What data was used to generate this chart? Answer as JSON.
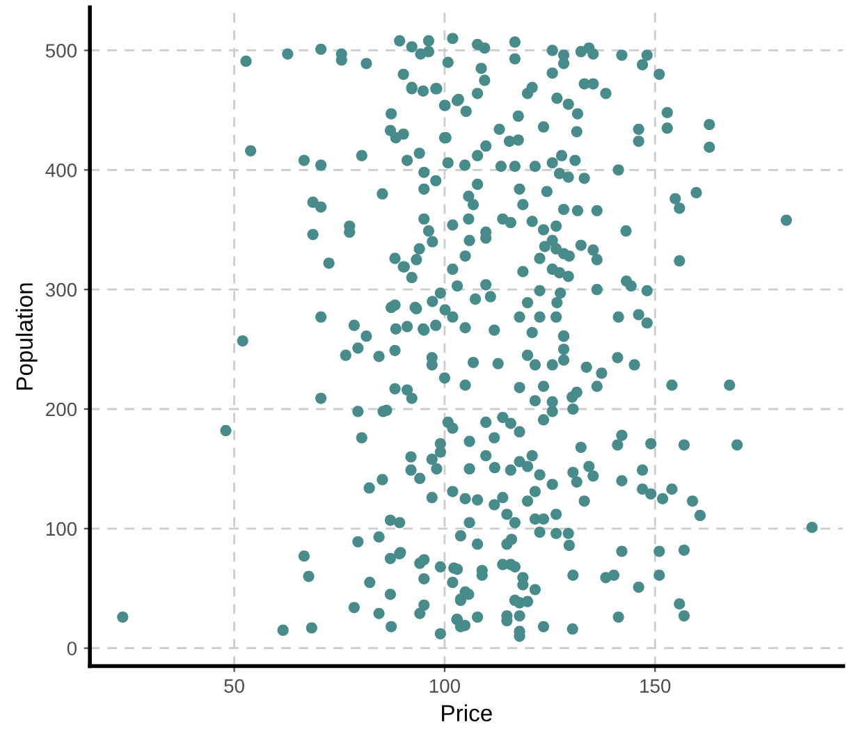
{
  "chart_data": {
    "type": "scatter",
    "xlabel": "Price",
    "ylabel": "Population",
    "xlim": [
      15.7,
      194.7
    ],
    "ylim": [
      -15,
      536
    ],
    "xticks": [
      50,
      100,
      150
    ],
    "yticks": [
      0,
      100,
      200,
      300,
      400,
      500
    ],
    "grid": true,
    "marker": "circle",
    "series": [
      {
        "color": "#478b8a",
        "x": [
          101.9,
          107.8,
          109.5,
          116.7,
          116.7,
          125.6,
          128.3,
          128.3,
          132.4,
          134.3,
          135.3,
          142.1,
          148.1,
          147,
          151,
          125.6,
          133.2,
          135.3,
          138.3,
          119.7,
          120.8,
          108.7,
          109.5,
          107.8,
          103,
          105.1,
          100,
          98.1,
          92.2,
          94.9,
          117.5,
          126.7,
          129.4,
          131.6,
          123.5,
          131.4,
          146.1,
          146.1,
          152.9,
          152.9,
          162.9,
          162.9,
          100,
          109.8,
          113,
          115.4,
          117.5,
          107.8,
          104.8,
          100.8,
          91.1,
          94,
          95.1,
          97.9,
          113.4,
          116.7,
          121.5,
          125.6,
          127.8,
          131,
          127.3,
          129.4,
          133.2,
          141.3,
          95.1,
          107.8,
          117.8,
          124.3,
          105.7,
          106.8,
          154.8,
          155.8,
          159.8,
          181.2,
          118.6,
          128.3,
          131.6,
          136.2,
          95.1,
          96.2,
          101.9,
          105.7,
          113.8,
          115.7,
          120.8,
          123.5,
          126.5,
          109.8,
          109.8,
          105.9,
          97.1,
          94,
          93.3,
          90.4,
          92.2,
          104.9,
          101.9,
          118.6,
          122.6,
          123.8,
          125.6,
          126.5,
          128.3,
          129.6,
          132.4,
          135.3,
          136.2,
          143.1,
          155.8,
          125.6,
          127.3,
          129.4,
          143.2,
          144.3,
          148.1,
          136.2,
          127.5,
          122.6,
          109.8,
          110.9,
          107.3,
          103,
          99,
          97.1,
          93.3,
          100.1,
          101.9,
          104.9,
          111.8,
          117.8,
          119.7,
          122.6,
          126.5,
          126.7,
          120.8,
          128.3,
          141.3,
          146.1,
          148.1,
          94.9,
          91.1,
          52.8,
          62.7,
          70.6,
          75.5,
          75.5,
          81.4,
          89.3,
          92.2,
          94.3,
          96.2,
          96.2,
          90.2,
          92.2,
          97.9,
          100.8,
          100.1,
          103.3,
          87.3,
          87.1,
          88.4,
          90.2,
          100.3,
          53.9,
          66.6,
          70.6,
          80.3,
          85.2,
          68.7,
          70.6,
          77.4,
          77.4,
          68.7,
          72.5,
          88.2,
          90.2,
          87.3,
          88.2,
          93.0,
          70.6,
          78.5,
          81.4,
          88.4,
          95.1,
          97.9,
          52,
          76.5,
          79.4,
          84.4,
          88.2,
          97,
          97,
          100,
          70.6,
          79.4,
          85.4,
          86.2,
          88.2,
          91.1,
          92.2,
          48,
          80.3,
          100.8,
          101.9,
          99,
          99,
          97,
          98.1,
          92,
          92,
          94.1,
          85.2,
          82.1,
          97,
          101.9,
          87.1,
          89.3,
          79.4,
          84.4,
          87.1,
          89.3,
          94.1,
          95.1,
          99,
          102.2,
          95.1,
          101.9,
          82.2,
          87.1,
          78.5,
          84.4,
          94.1,
          95.1,
          103.8,
          102.9,
          103.8,
          87.3,
          99,
          66.6,
          67.7,
          23.5,
          61.6,
          68.4,
          106.8,
          112.7,
          119.7,
          121.5,
          125.6,
          128.3,
          128.3,
          128.3,
          133.7,
          137.3,
          141.1,
          145.1,
          104.9,
          117.8,
          123.5,
          121.5,
          125.6,
          125.6,
          130.3,
          131.4,
          130.5,
          136.2,
          154,
          167.7,
          109.8,
          113.8,
          115.7,
          117.8,
          105.9,
          111.8,
          123.5,
          132.4,
          141.1,
          142.1,
          149,
          156.9,
          169.5,
          105.9,
          109.8,
          111.9,
          115.7,
          117.8,
          120.8,
          119.7,
          122.6,
          125.6,
          130.5,
          131.4,
          134.3,
          135.3,
          142.1,
          147,
          147,
          149,
          151.8,
          154,
          158.9,
          160.7,
          187.3,
          104.9,
          107.8,
          111.8,
          113.8,
          119.7,
          121.5,
          114.8,
          116.7,
          121.5,
          123.5,
          126.5,
          122.6,
          126.5,
          129.4,
          129.6,
          133.2,
          105.9,
          103.8,
          107.8,
          114.8,
          115.9,
          89.5,
          103,
          108.9,
          108.9,
          113.8,
          115.7,
          116.7,
          118.6,
          118.6,
          121.5,
          104.9,
          105.7,
          103.8,
          116.7,
          117.8,
          119.7,
          107.8,
          114.8,
          114.8,
          117.8,
          103,
          104.8,
          117.8,
          117.8,
          123.5,
          130.4,
          141.3,
          130.5,
          138.3,
          140.2,
          146.1,
          142.1,
          151,
          151,
          156.9,
          155.8,
          156.9
        ],
        "values": [
          510,
          505,
          502,
          507,
          493,
          500,
          496,
          489,
          499,
          502,
          497,
          496,
          496,
          488,
          480,
          481,
          472,
          472,
          464,
          464,
          469,
          485,
          475,
          464,
          458,
          449,
          454,
          468,
          469,
          466,
          445,
          460,
          455,
          447,
          436,
          432,
          434,
          424,
          448,
          435,
          438,
          419,
          427,
          420,
          434,
          424,
          425,
          412,
          404,
          406,
          408,
          414,
          398,
          391,
          403,
          403,
          403,
          406,
          412,
          408,
          397,
          394,
          393,
          400,
          384,
          388,
          384,
          382,
          378,
          371,
          376,
          368,
          381,
          358,
          371,
          367,
          366,
          366,
          359,
          349,
          354,
          359,
          359,
          356,
          357,
          350,
          353,
          348,
          343,
          341,
          340,
          334,
          325,
          319,
          310,
          328,
          317,
          315,
          326,
          336,
          341,
          334,
          330,
          328,
          337,
          333,
          325,
          349,
          324,
          317,
          314,
          311,
          307,
          303,
          299,
          300,
          297,
          299,
          304,
          294,
          292,
          303,
          297,
          290,
          284,
          283,
          277,
          268,
          266,
          277,
          289,
          277,
          277,
          289,
          264,
          261,
          277,
          279,
          272,
          267,
          269,
          491,
          497,
          501,
          497,
          492,
          489,
          508,
          503,
          497,
          508,
          499,
          480,
          468,
          468,
          490,
          454,
          459,
          447,
          433,
          427,
          430,
          427,
          416,
          408,
          404,
          412,
          380,
          373,
          369,
          353,
          348,
          346,
          322,
          326,
          319,
          285,
          287,
          285,
          277,
          270,
          261,
          267,
          266,
          270,
          257,
          245,
          251,
          244,
          249,
          243,
          237,
          226,
          209,
          198,
          198,
          199,
          217,
          216,
          209,
          182,
          176,
          189,
          184,
          171,
          164,
          158,
          150,
          160,
          149,
          142,
          141,
          134,
          126,
          131,
          107,
          105,
          89,
          93,
          75,
          79,
          71,
          74,
          68,
          67,
          58,
          55,
          55,
          45,
          34,
          29,
          29,
          36,
          41,
          24,
          18,
          18,
          12,
          77,
          60,
          26,
          15,
          17,
          239,
          238,
          245,
          237,
          237,
          261,
          250,
          241,
          235,
          230,
          243,
          237,
          220,
          218,
          219,
          207,
          206,
          198,
          210,
          214,
          200,
          219,
          220,
          220,
          189,
          193,
          188,
          181,
          173,
          176,
          191,
          168,
          170,
          178,
          171,
          170,
          170,
          150,
          161,
          151,
          149,
          156,
          161,
          152,
          145,
          137,
          147,
          139,
          152,
          144,
          140,
          149,
          133,
          129,
          125,
          133,
          123,
          111,
          101,
          125,
          124,
          120,
          126,
          123,
          131,
          112,
          105,
          108,
          108,
          112,
          97,
          96,
          96,
          86,
          123,
          105,
          94,
          87,
          87,
          91,
          80,
          66,
          65,
          61,
          70,
          70,
          68,
          59,
          53,
          49,
          47,
          45,
          40,
          40,
          38,
          39,
          26,
          27,
          23,
          27,
          24,
          19,
          14,
          10,
          18,
          16,
          26,
          61,
          59,
          61,
          51,
          81,
          81,
          61,
          82,
          37,
          27
        ]
      }
    ]
  }
}
